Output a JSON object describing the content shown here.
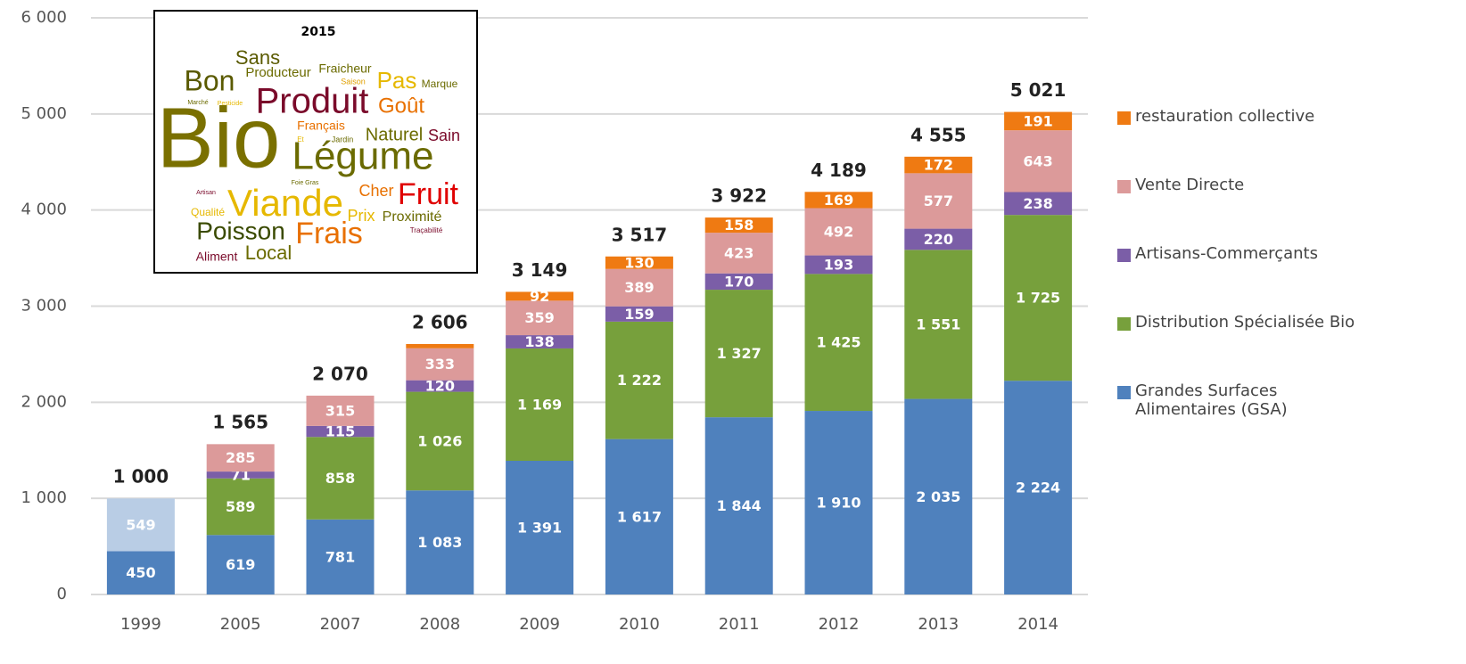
{
  "chart_data": {
    "type": "stacked-bar",
    "categories": [
      "1999",
      "2005",
      "2007",
      "2008",
      "2009",
      "2010",
      "2011",
      "2012",
      "2013",
      "2014"
    ],
    "ylim": [
      0,
      6000
    ],
    "yticks": [
      0,
      {
        "value": 1000,
        "label": "1 000"
      },
      {
        "value": 2000,
        "label": "2 000"
      },
      {
        "value": 3000,
        "label": "3 000"
      },
      {
        "value": 4000,
        "label": "4 000"
      },
      {
        "value": 5000,
        "label": "5 000"
      },
      {
        "value": 6000,
        "label": "6 000"
      }
    ],
    "grid": true,
    "legend": "right",
    "series": [
      {
        "name": "Grandes Surfaces Alimentaires (GSA)",
        "color": "#4f81bd",
        "values": [
          450,
          619,
          781,
          1083,
          1391,
          1617,
          1844,
          1910,
          2035,
          2224
        ],
        "value_labels": [
          "450",
          "619",
          "781",
          "1 083",
          "1 391",
          "1 617",
          "1 844",
          "1 910",
          "2 035",
          "2 224"
        ]
      },
      {
        "color": "#b9cde5",
        "values": [
          549,
          null,
          null,
          null,
          null,
          null,
          null,
          null,
          null,
          null
        ],
        "value_labels": [
          "549",
          null,
          null,
          null,
          null,
          null,
          null,
          null,
          null,
          null
        ]
      },
      {
        "name": "Distribution Spécialisée Bio",
        "color": "#77a03c",
        "values": [
          null,
          589,
          858,
          1026,
          1169,
          1222,
          1327,
          1425,
          1551,
          1725
        ],
        "value_labels": [
          null,
          "589",
          "858",
          "1 026",
          "1 169",
          "1 222",
          "1 327",
          "1 425",
          "1 551",
          "1 725"
        ]
      },
      {
        "name": "Artisans-Commerçants",
        "color": "#7b5ea7",
        "values": [
          null,
          71,
          115,
          120,
          138,
          159,
          170,
          193,
          220,
          238
        ],
        "value_labels": [
          null,
          "71",
          "115",
          "120",
          "138",
          "159",
          "170",
          "193",
          "220",
          "238"
        ]
      },
      {
        "name": "Vente Directe",
        "color": "#dc9a9a",
        "values": [
          null,
          285,
          315,
          333,
          359,
          389,
          423,
          492,
          577,
          643
        ],
        "value_labels": [
          null,
          "285",
          "315",
          "333",
          "359",
          "389",
          "423",
          "492",
          "577",
          "643"
        ]
      },
      {
        "name": "restauration collective",
        "color": "#ef7a12",
        "values": [
          null,
          null,
          null,
          44,
          92,
          130,
          158,
          169,
          172,
          191
        ],
        "value_labels": [
          null,
          null,
          null,
          null,
          "92",
          "130",
          "158",
          "169",
          "172",
          "191"
        ]
      }
    ],
    "totals": {
      "values": [
        1000,
        1565,
        2070,
        2606,
        3149,
        3517,
        3922,
        4189,
        4555,
        5021
      ],
      "value_labels": [
        "1 000",
        "1 565",
        "2 070",
        "2 606",
        "3 149",
        "3 517",
        "3 922",
        "4 189",
        "4 555",
        "5 021"
      ]
    }
  },
  "word_cloud": {
    "title": "2015",
    "words": [
      "Sans",
      "Producteur",
      "Fraicheur",
      "Saison",
      "Pas",
      "Marque",
      "Bon",
      "Produit",
      "Goût",
      "Marché",
      "Pesticide",
      "Bio",
      "Français",
      "Et",
      "Jardin",
      "Naturel",
      "Sain",
      "Légume",
      "Foie Gras",
      "Artisan",
      "Cher",
      "Fruit",
      "Viande",
      "Qualité",
      "Prix",
      "Proximité",
      "Poisson",
      "Frais",
      "Traçabilité",
      "Aliment",
      "Local"
    ]
  }
}
